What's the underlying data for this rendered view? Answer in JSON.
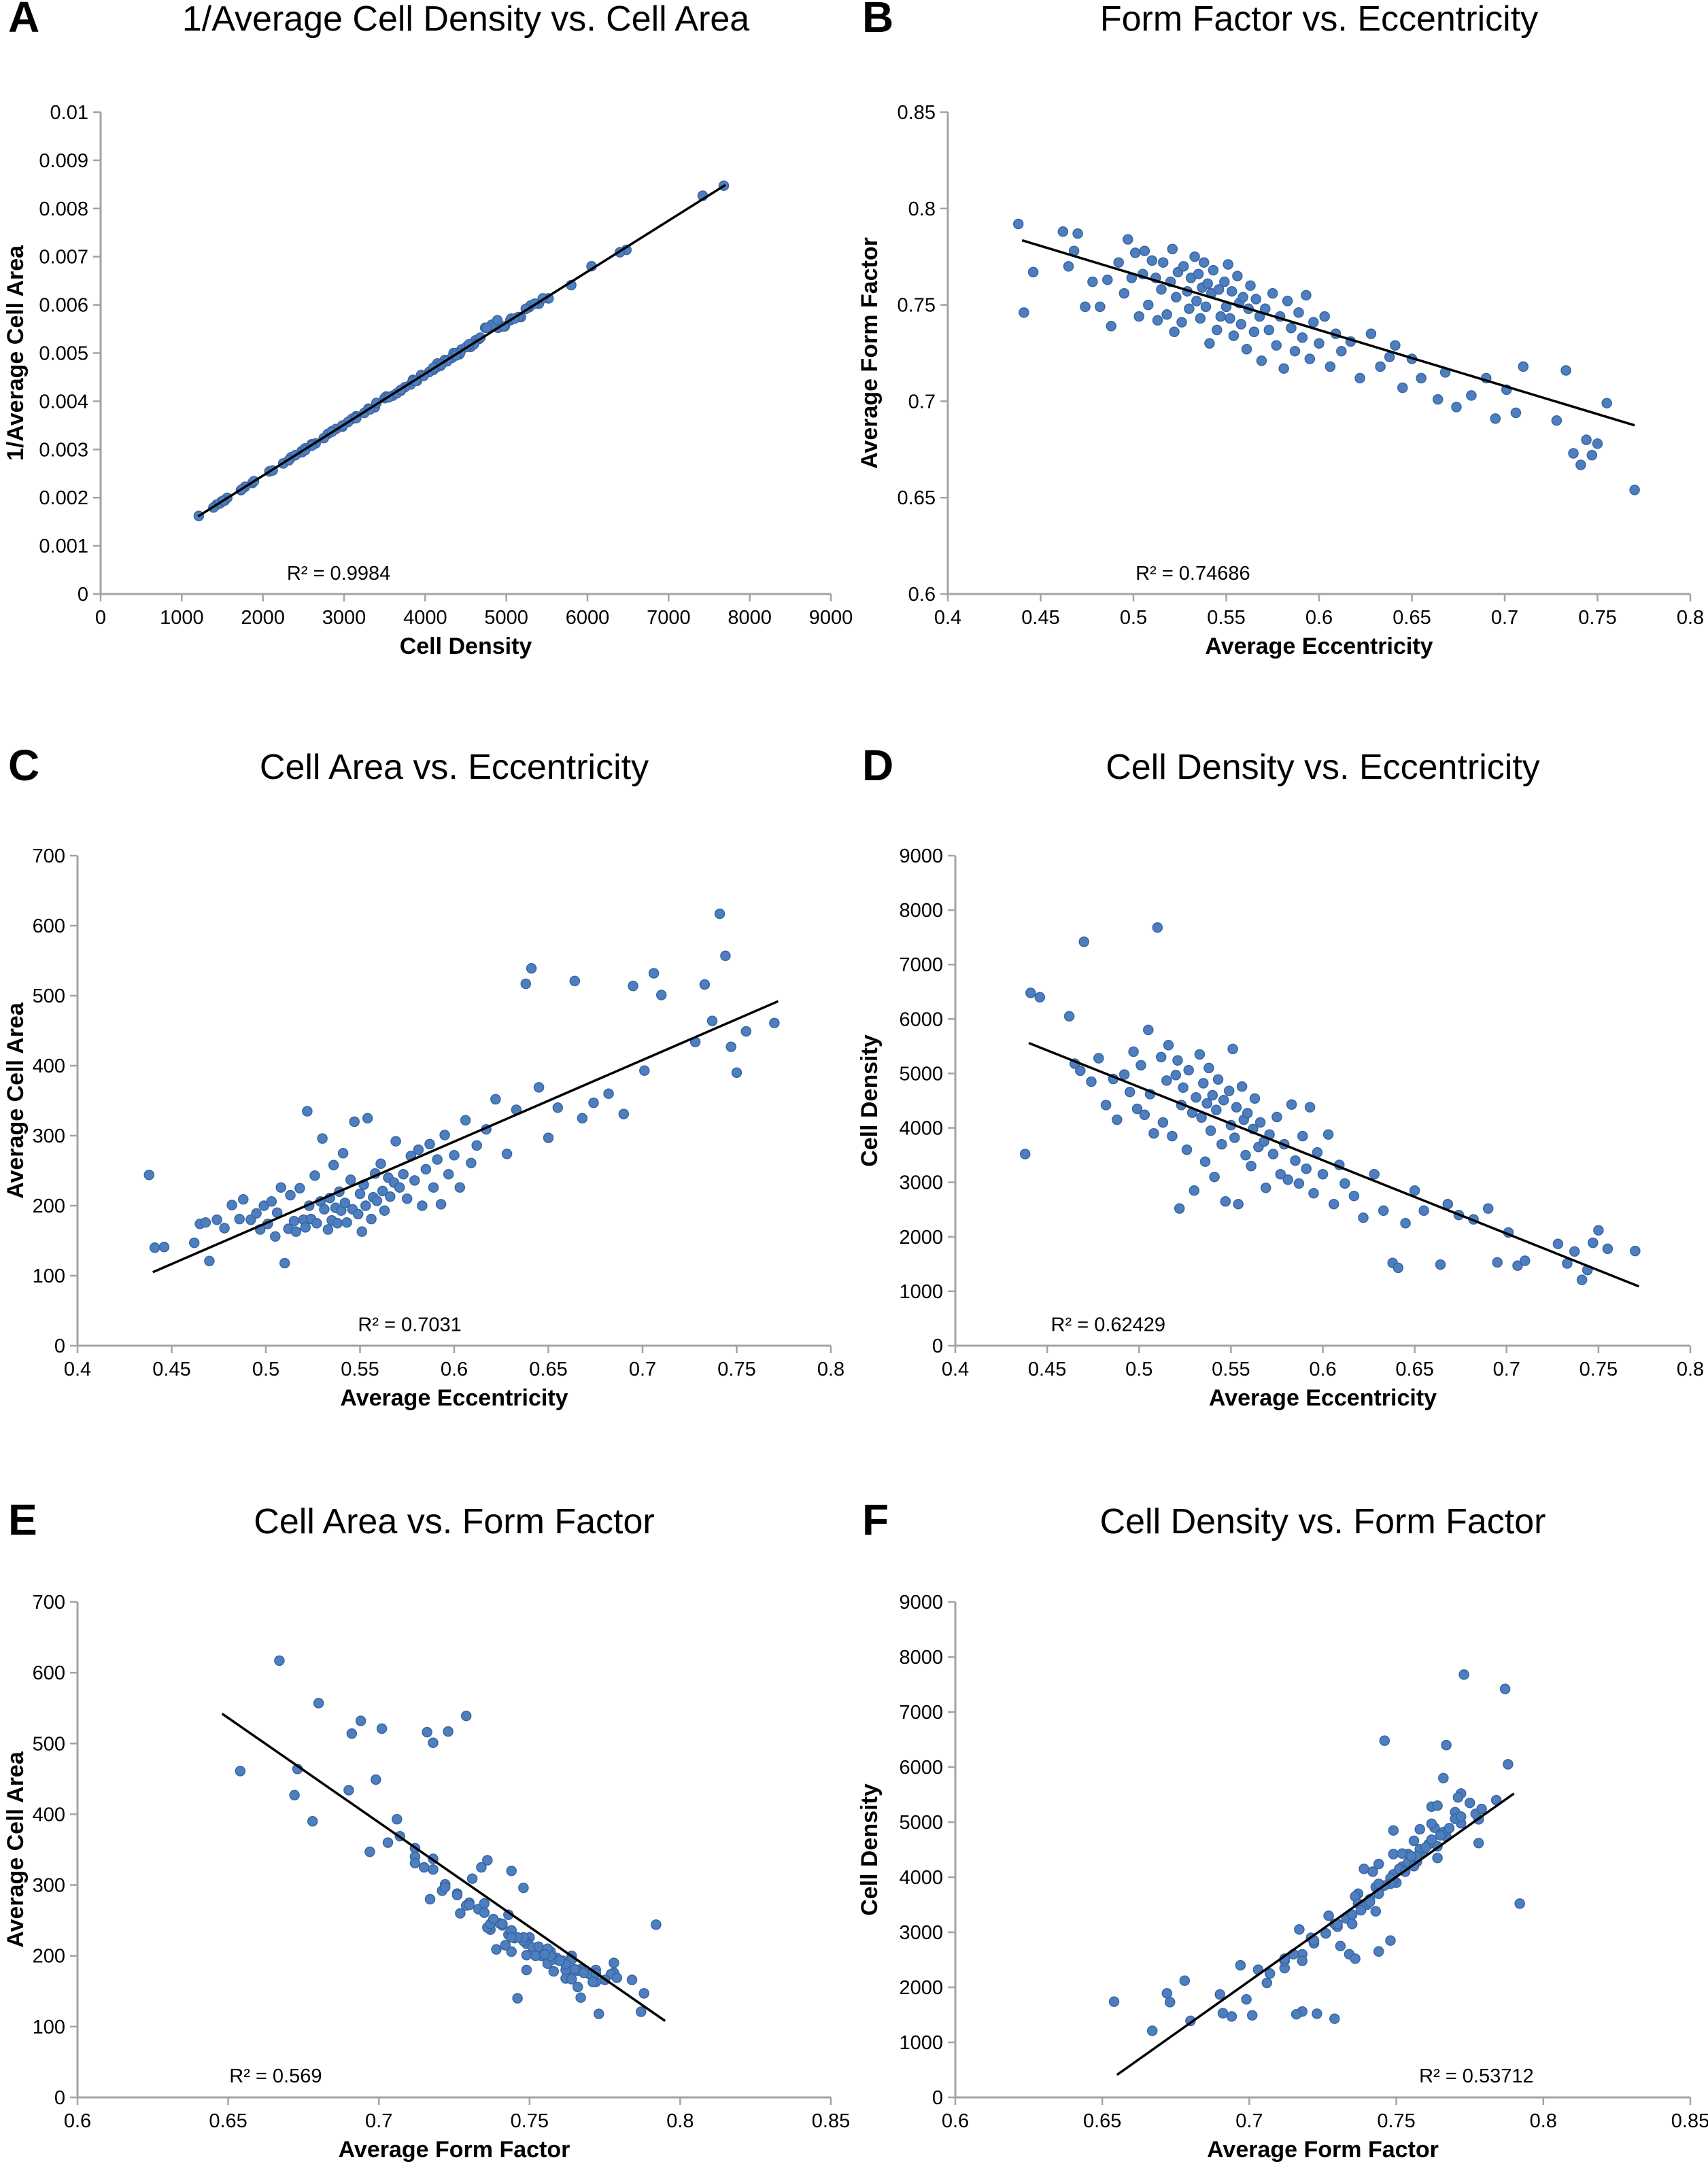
{
  "figure": {
    "background": "#ffffff",
    "point_color": "#4d7ebf",
    "point_edge_color": "#3a66a0",
    "trend_color": "#000000",
    "axis_color": "#a3a3a3",
    "text_color": "#000000"
  },
  "chart_data": {
    "type": "scatter",
    "description": "Six scatter panels comparing per-image cell metrics: average eccentricity (ecc), average form factor (ff), cell density (density), average cell area (area). Panel A plots 1/area vs density.",
    "record_keys": [
      "ecc",
      "ff",
      "density",
      "area"
    ],
    "records": [
      [
        0.438,
        0.792,
        3520,
        244
      ],
      [
        0.441,
        0.746,
        6480,
        140
      ],
      [
        0.446,
        0.767,
        6400,
        141
      ],
      [
        0.462,
        0.788,
        6050,
        147
      ],
      [
        0.465,
        0.77,
        5180,
        174
      ],
      [
        0.468,
        0.778,
        5050,
        176
      ],
      [
        0.47,
        0.787,
        7420,
        121
      ],
      [
        0.474,
        0.749,
        4850,
        180
      ],
      [
        0.478,
        0.762,
        5280,
        168
      ],
      [
        0.482,
        0.749,
        4420,
        201
      ],
      [
        0.486,
        0.763,
        4900,
        181
      ],
      [
        0.488,
        0.739,
        4150,
        209
      ],
      [
        0.492,
        0.772,
        4980,
        180
      ],
      [
        0.495,
        0.756,
        4660,
        189
      ],
      [
        0.497,
        0.784,
        5400,
        166
      ],
      [
        0.499,
        0.764,
        4350,
        200
      ],
      [
        0.501,
        0.777,
        5150,
        174
      ],
      [
        0.503,
        0.744,
        4240,
        206
      ],
      [
        0.505,
        0.766,
        5800,
        156
      ],
      [
        0.506,
        0.778,
        4620,
        190
      ],
      [
        0.508,
        0.75,
        3900,
        226
      ],
      [
        0.51,
        0.773,
        7680,
        118
      ],
      [
        0.512,
        0.764,
        5300,
        167
      ],
      [
        0.513,
        0.742,
        4100,
        215
      ],
      [
        0.515,
        0.758,
        4870,
        178
      ],
      [
        0.516,
        0.772,
        5520,
        163
      ],
      [
        0.518,
        0.745,
        3850,
        225
      ],
      [
        0.52,
        0.762,
        4970,
        180
      ],
      [
        0.521,
        0.779,
        5240,
        169
      ],
      [
        0.523,
        0.754,
        4420,
        200
      ],
      [
        0.524,
        0.767,
        4740,
        181
      ],
      [
        0.526,
        0.741,
        3600,
        243
      ],
      [
        0.527,
        0.77,
        5060,
        175
      ],
      [
        0.529,
        0.757,
        4280,
        206
      ],
      [
        0.53,
        0.748,
        2850,
        296
      ],
      [
        0.531,
        0.764,
        4560,
        195
      ],
      [
        0.533,
        0.775,
        5350,
        166
      ],
      [
        0.534,
        0.752,
        4190,
        211
      ],
      [
        0.535,
        0.766,
        4820,
        179
      ],
      [
        0.536,
        0.743,
        3380,
        258
      ],
      [
        0.537,
        0.759,
        4450,
        197
      ],
      [
        0.538,
        0.772,
        5100,
        175
      ],
      [
        0.539,
        0.749,
        3950,
        220
      ],
      [
        0.54,
        0.761,
        4600,
        193
      ],
      [
        0.541,
        0.73,
        3100,
        275
      ],
      [
        0.542,
        0.756,
        4330,
        204
      ],
      [
        0.543,
        0.768,
        4890,
        176
      ],
      [
        0.545,
        0.737,
        3700,
        237
      ],
      [
        0.546,
        0.758,
        4510,
        195
      ],
      [
        0.547,
        0.744,
        2650,
        320
      ],
      [
        0.549,
        0.762,
        4680,
        188
      ],
      [
        0.55,
        0.749,
        4050,
        217
      ],
      [
        0.551,
        0.771,
        5450,
        163
      ],
      [
        0.552,
        0.743,
        3820,
        230
      ],
      [
        0.553,
        0.757,
        4380,
        200
      ],
      [
        0.554,
        0.734,
        2600,
        325
      ],
      [
        0.556,
        0.765,
        4760,
        181
      ],
      [
        0.557,
        0.751,
        4150,
        212
      ],
      [
        0.558,
        0.74,
        3500,
        246
      ],
      [
        0.559,
        0.754,
        4270,
        207
      ],
      [
        0.561,
        0.727,
        3300,
        260
      ],
      [
        0.562,
        0.748,
        3980,
        221
      ],
      [
        0.563,
        0.76,
        4540,
        193
      ],
      [
        0.565,
        0.736,
        3650,
        240
      ],
      [
        0.566,
        0.753,
        4100,
        213
      ],
      [
        0.568,
        0.744,
        3750,
        233
      ],
      [
        0.569,
        0.721,
        2900,
        292
      ],
      [
        0.571,
        0.748,
        3880,
        226
      ],
      [
        0.573,
        0.737,
        3520,
        245
      ],
      [
        0.575,
        0.756,
        4200,
        210
      ],
      [
        0.577,
        0.729,
        3150,
        271
      ],
      [
        0.579,
        0.744,
        3700,
        236
      ],
      [
        0.581,
        0.717,
        3050,
        280
      ],
      [
        0.583,
        0.752,
        4430,
        200
      ],
      [
        0.585,
        0.738,
        3400,
        252
      ],
      [
        0.587,
        0.726,
        2980,
        288
      ],
      [
        0.589,
        0.746,
        3850,
        226
      ],
      [
        0.591,
        0.733,
        3250,
        266
      ],
      [
        0.593,
        0.755,
        4380,
        202
      ],
      [
        0.595,
        0.722,
        2800,
        301
      ],
      [
        0.597,
        0.741,
        3550,
        245
      ],
      [
        0.6,
        0.73,
        3150,
        272
      ],
      [
        0.603,
        0.744,
        3880,
        226
      ],
      [
        0.606,
        0.718,
        2600,
        322
      ],
      [
        0.609,
        0.735,
        3320,
        261
      ],
      [
        0.612,
        0.726,
        2980,
        286
      ],
      [
        0.617,
        0.731,
        2750,
        309
      ],
      [
        0.622,
        0.712,
        2350,
        352
      ],
      [
        0.628,
        0.735,
        3150,
        274
      ],
      [
        0.633,
        0.718,
        2480,
        337
      ],
      [
        0.638,
        0.723,
        1520,
        517
      ],
      [
        0.641,
        0.729,
        1430,
        539
      ],
      [
        0.645,
        0.707,
        2250,
        369
      ],
      [
        0.65,
        0.722,
        2850,
        297
      ],
      [
        0.655,
        0.712,
        2480,
        340
      ],
      [
        0.664,
        0.701,
        1490,
        521
      ],
      [
        0.668,
        0.715,
        2600,
        325
      ],
      [
        0.674,
        0.697,
        2400,
        347
      ],
      [
        0.682,
        0.703,
        2320,
        360
      ],
      [
        0.69,
        0.712,
        2520,
        331
      ],
      [
        0.695,
        0.691,
        1530,
        514
      ],
      [
        0.701,
        0.706,
        2080,
        393
      ],
      [
        0.706,
        0.694,
        1470,
        532
      ],
      [
        0.71,
        0.718,
        1560,
        501
      ],
      [
        0.728,
        0.69,
        1870,
        434
      ],
      [
        0.733,
        0.716,
        1510,
        516
      ],
      [
        0.737,
        0.673,
        1730,
        464
      ],
      [
        0.741,
        0.667,
        1210,
        617
      ],
      [
        0.744,
        0.68,
        1390,
        557
      ],
      [
        0.747,
        0.672,
        1890,
        427
      ],
      [
        0.75,
        0.678,
        2120,
        390
      ],
      [
        0.755,
        0.699,
        1780,
        449
      ],
      [
        0.77,
        0.654,
        1740,
        461
      ],
      [
        0.522,
        0.736,
        2520,
        335
      ]
    ],
    "panels": [
      {
        "letter": "A",
        "title": "1/Average Cell Density vs. Cell Area",
        "xlabel": "Cell Density",
        "ylabel": "1/Average Cell Area",
        "xkey": "density",
        "ykey": "inv_area",
        "xlim": [
          0,
          9000
        ],
        "xstep": 1000,
        "ylim": [
          0,
          0.01
        ],
        "ystep": 0.001,
        "r2_label": "R² = 0.9984",
        "trend": [
          1200,
          0.00161,
          7700,
          0.00849
        ]
      },
      {
        "letter": "B",
        "title": "Form Factor vs. Eccentricity",
        "xlabel": "Average Eccentricity",
        "ylabel": "Average Form Factor",
        "xkey": "ecc",
        "ykey": "ff",
        "xlim": [
          0.4,
          0.8
        ],
        "xstep": 0.05,
        "ylim": [
          0.6,
          0.85
        ],
        "ystep": 0.05,
        "r2_label": "R² = 0.74686",
        "trend": [
          0.44,
          0.7835,
          0.77,
          0.6875
        ]
      },
      {
        "letter": "C",
        "title": "Cell Area vs. Eccentricity",
        "xlabel": "Average Eccentricity",
        "ylabel": "Average Cell Area",
        "xkey": "ecc",
        "ykey": "area",
        "xlim": [
          0.4,
          0.8
        ],
        "xstep": 0.05,
        "ylim": [
          0,
          700
        ],
        "ystep": 100,
        "r2_label": "R² = 0.7031",
        "trend": [
          0.44,
          105,
          0.772,
          492
        ]
      },
      {
        "letter": "D",
        "title": "Cell Density vs. Eccentricity",
        "xlabel": "Average Eccentricity",
        "ylabel": "Cell Density",
        "xkey": "ecc",
        "ykey": "density",
        "xlim": [
          0.4,
          0.8
        ],
        "xstep": 0.05,
        "ylim": [
          0,
          9000
        ],
        "ystep": 1000,
        "r2_label": "R² = 0.62429",
        "trend": [
          0.44,
          5560,
          0.772,
          1090
        ]
      },
      {
        "letter": "E",
        "title": "Cell Area vs. Form Factor",
        "xlabel": "Average Form Factor",
        "ylabel": "Average Cell Area",
        "xkey": "ff",
        "ykey": "area",
        "xlim": [
          0.6,
          0.85
        ],
        "xstep": 0.05,
        "ylim": [
          0,
          700
        ],
        "ystep": 100,
        "r2_label": "R² = 0.569",
        "trend": [
          0.648,
          542,
          0.795,
          108
        ]
      },
      {
        "letter": "F",
        "title": "Cell Density vs. Form Factor",
        "xlabel": "Average Form Factor",
        "ylabel": "Cell Density",
        "xkey": "ff",
        "ykey": "density",
        "xlim": [
          0.6,
          0.85
        ],
        "xstep": 0.05,
        "ylim": [
          0,
          9000
        ],
        "ystep": 1000,
        "r2_label": "R² = 0.53712",
        "trend": [
          0.655,
          410,
          0.79,
          5520
        ]
      }
    ]
  }
}
